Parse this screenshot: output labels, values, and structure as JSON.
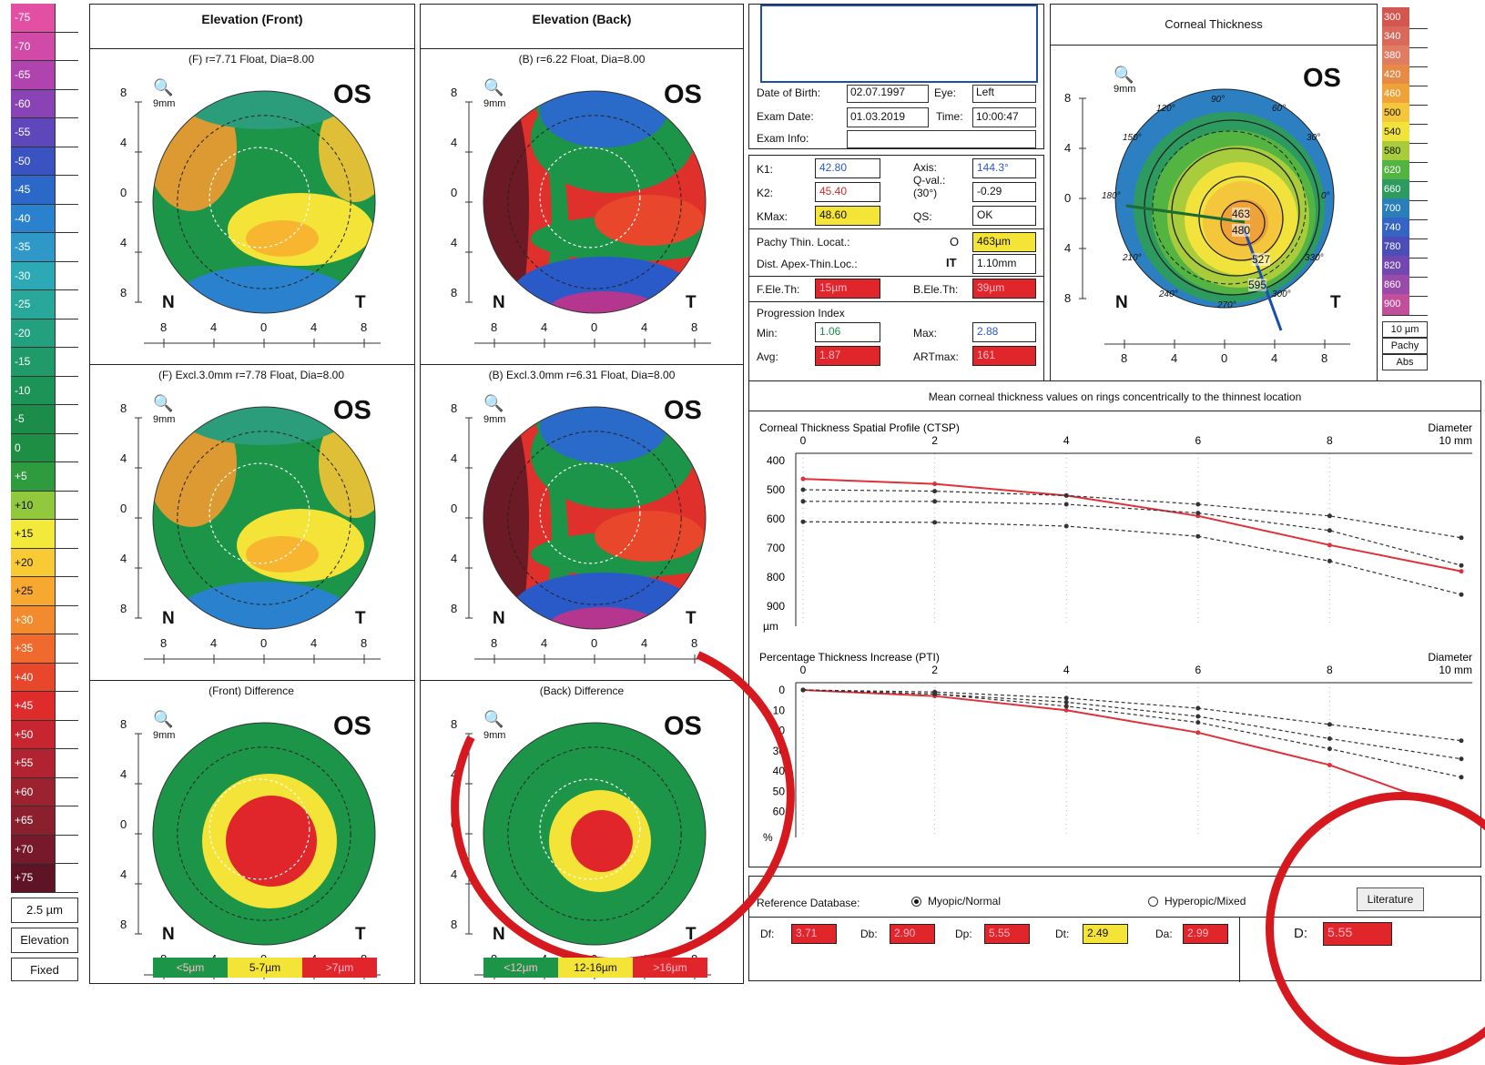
{
  "colorbar": {
    "items": [
      {
        "label": "-75",
        "color": "#e24fa3"
      },
      {
        "label": "-70",
        "color": "#d14aa8"
      },
      {
        "label": "-65",
        "color": "#b043ad"
      },
      {
        "label": "-60",
        "color": "#8a43b5"
      },
      {
        "label": "-55",
        "color": "#5d47ba"
      },
      {
        "label": "-50",
        "color": "#3b53c1"
      },
      {
        "label": "-45",
        "color": "#2c68c8"
      },
      {
        "label": "-40",
        "color": "#2a82cf"
      },
      {
        "label": "-35",
        "color": "#2f98c9"
      },
      {
        "label": "-30",
        "color": "#2ca9b4"
      },
      {
        "label": "-25",
        "color": "#27a89a"
      },
      {
        "label": "-20",
        "color": "#23a07e"
      },
      {
        "label": "-15",
        "color": "#209a68"
      },
      {
        "label": "-10",
        "color": "#1c9457"
      },
      {
        "label": "-5",
        "color": "#1b8c49"
      },
      {
        "label": "0",
        "color": "#1f8e45"
      },
      {
        "label": "+5",
        "color": "#2e9b3e"
      },
      {
        "label": "+10",
        "color": "#92c83e"
      },
      {
        "label": "+15",
        "color": "#f2e93a"
      },
      {
        "label": "+20",
        "color": "#f8cb35"
      },
      {
        "label": "+25",
        "color": "#f6a831"
      },
      {
        "label": "+30",
        "color": "#f28a2e"
      },
      {
        "label": "+35",
        "color": "#ef6a2c"
      },
      {
        "label": "+40",
        "color": "#e8472b"
      },
      {
        "label": "+45",
        "color": "#de2b2c"
      },
      {
        "label": "+50",
        "color": "#c72530"
      },
      {
        "label": "+55",
        "color": "#b12331"
      },
      {
        "label": "+60",
        "color": "#9d2230"
      },
      {
        "label": "+65",
        "color": "#8a1f2e"
      },
      {
        "label": "+70",
        "color": "#77192b"
      },
      {
        "label": "+75",
        "color": "#5e1424"
      }
    ],
    "step": "2.5 µm",
    "mode": "Elevation",
    "scale": "Fixed"
  },
  "maps": {
    "front_title": "Elevation (Front)",
    "back_title": "Elevation (Back)",
    "front_caption": "(F) r=7.71 Float, Dia=8.00",
    "back_caption": "(B) r=6.22 Float, Dia=8.00",
    "front_excl_caption": "(F) Excl.3.0mm  r=7.78 Float, Dia=8.00",
    "back_excl_caption": "(B) Excl.3.0mm  r=6.31 Float, Dia=8.00",
    "front_diff_caption": "(Front) Difference",
    "back_diff_caption": "(Back) Difference",
    "eye_label": "OS",
    "nasal": "N",
    "temporal": "T",
    "lens_label": "9mm",
    "y_ticks": [
      "8",
      "4",
      "0",
      "4",
      "8"
    ],
    "x_ticks": [
      "8",
      "4",
      "0",
      "4",
      "8"
    ],
    "front_legend": [
      "<5µm",
      "5-7µm",
      ">7µm"
    ],
    "back_legend": [
      "<12µm",
      "12-16µm",
      ">16µm"
    ]
  },
  "patient": {
    "dob_label": "Date of Birth:",
    "dob": "02.07.1997",
    "eye_label": "Eye:",
    "eye": "Left",
    "exam_date_label": "Exam Date:",
    "exam_date": "01.03.2019",
    "time_label": "Time:",
    "time": "10:00:47",
    "exam_info_label": "Exam Info:"
  },
  "keratometry": {
    "k1_label": "K1:",
    "k1": "42.80",
    "k2_label": "K2:",
    "k2": "45.40",
    "kmax_label": "KMax:",
    "kmax": "48.60",
    "axis_label": "Axis:",
    "axis": "144.3°",
    "qval_label": "Q-val.:",
    "qval_sub": "(30°)",
    "qval": "-0.29",
    "qs_label": "QS:",
    "qs": "OK",
    "pachy_label": "Pachy Thin. Locat.:",
    "pachy_symbol": "O",
    "pachy": "463µm",
    "dist_label": "Dist. Apex-Thin.Loc.:",
    "dist_symbol": "IT",
    "dist": "1.10mm",
    "fele_label": "F.Ele.Th:",
    "fele": "15µm",
    "bele_label": "B.Ele.Th:",
    "bele": "39µm",
    "prog_label": "Progression Index",
    "min_label": "Min:",
    "min": "1.06",
    "max_label": "Max:",
    "max": "2.88",
    "avg_label": "Avg:",
    "avg": "1.87",
    "artmax_label": "ARTmax:",
    "artmax": "161"
  },
  "thickness_map": {
    "title": "Corneal Thickness",
    "eye_label": "OS",
    "lens_label": "9mm",
    "nasal": "N",
    "temporal": "T",
    "angles": [
      "90°",
      "120°",
      "150°",
      "180°",
      "210°",
      "240°",
      "270°",
      "300°",
      "330°",
      "0°",
      "30°",
      "60°"
    ],
    "contours": [
      "463",
      "480",
      "527",
      "595"
    ],
    "y_ticks": [
      "8",
      "4",
      "0",
      "4",
      "8"
    ],
    "x_ticks": [
      "8",
      "4",
      "0",
      "4",
      "8"
    ],
    "scale": [
      {
        "label": "300",
        "color": "#d4574f"
      },
      {
        "label": "340",
        "color": "#d9695a"
      },
      {
        "label": "380",
        "color": "#e07c63"
      },
      {
        "label": "420",
        "color": "#e68a46"
      },
      {
        "label": "460",
        "color": "#eea238"
      },
      {
        "label": "500",
        "color": "#f3c63c"
      },
      {
        "label": "540",
        "color": "#f1e23c"
      },
      {
        "label": "580",
        "color": "#a8cc3c"
      },
      {
        "label": "620",
        "color": "#54b442"
      },
      {
        "label": "660",
        "color": "#2d9b60"
      },
      {
        "label": "700",
        "color": "#2b7fb8"
      },
      {
        "label": "740",
        "color": "#3564c4"
      },
      {
        "label": "780",
        "color": "#4c4eb8"
      },
      {
        "label": "820",
        "color": "#7248b0"
      },
      {
        "label": "860",
        "color": "#9a4aa8"
      },
      {
        "label": "900",
        "color": "#c24f9c"
      }
    ],
    "step": "10 µm",
    "type": "Pachy",
    "mode": "Abs"
  },
  "charts_header": "Mean corneal thickness values on rings concentrically to the thinnest location",
  "chart_data": [
    {
      "type": "line",
      "title": "Corneal Thickness Spatial Profile (CTSP)",
      "xlabel": "Diameter 10 mm",
      "ylabel": "µm",
      "x_ticks": [
        "0",
        "2",
        "4",
        "6",
        "8"
      ],
      "y_ticks": [
        "400",
        "500",
        "600",
        "700",
        "800",
        "900"
      ],
      "ylim": [
        400,
        950
      ],
      "x": [
        0,
        2,
        4,
        6,
        8,
        10
      ],
      "series": [
        {
          "values": [
            463,
            480,
            520,
            590,
            690,
            780
          ],
          "color": "#e0303a"
        },
        {
          "values": [
            500,
            505,
            520,
            550,
            590,
            665
          ],
          "color": "#333333"
        },
        {
          "values": [
            540,
            540,
            550,
            580,
            640,
            760
          ],
          "color": "#333333"
        },
        {
          "values": [
            610,
            612,
            625,
            660,
            745,
            860
          ],
          "color": "#333333"
        }
      ]
    },
    {
      "type": "line",
      "title": "Percentage Thickness Increase (PTI)",
      "xlabel": "Diameter 10 mm",
      "ylabel": "%",
      "x_ticks": [
        "0",
        "2",
        "4",
        "6",
        "8"
      ],
      "y_ticks": [
        "0",
        "10",
        "20",
        "30",
        "40",
        "50",
        "60"
      ],
      "ylim": [
        0,
        70
      ],
      "x": [
        0,
        2,
        4,
        6,
        8,
        10
      ],
      "series": [
        {
          "values": [
            0,
            3,
            10,
            21,
            37,
            60
          ],
          "color": "#e0303a"
        },
        {
          "values": [
            0,
            1,
            4,
            9,
            17,
            25
          ],
          "color": "#333333"
        },
        {
          "values": [
            0,
            2,
            6,
            13,
            24,
            34
          ],
          "color": "#333333"
        },
        {
          "values": [
            0,
            2,
            8,
            16,
            29,
            43
          ],
          "color": "#333333"
        }
      ]
    }
  ],
  "database": {
    "label": "Reference Database:",
    "opt1": "Myopic/Normal",
    "opt2": "Hyperopic/Mixed",
    "literature": "Literature",
    "df_label": "Df:",
    "df": "3.71",
    "db_label": "Db:",
    "db": "2.90",
    "dp_label": "Dp:",
    "dp": "5.55",
    "dt_label": "Dt:",
    "dt": "2.49",
    "da_label": "Da:",
    "da": "2.99",
    "d_label": "D:",
    "d": "5.55"
  }
}
